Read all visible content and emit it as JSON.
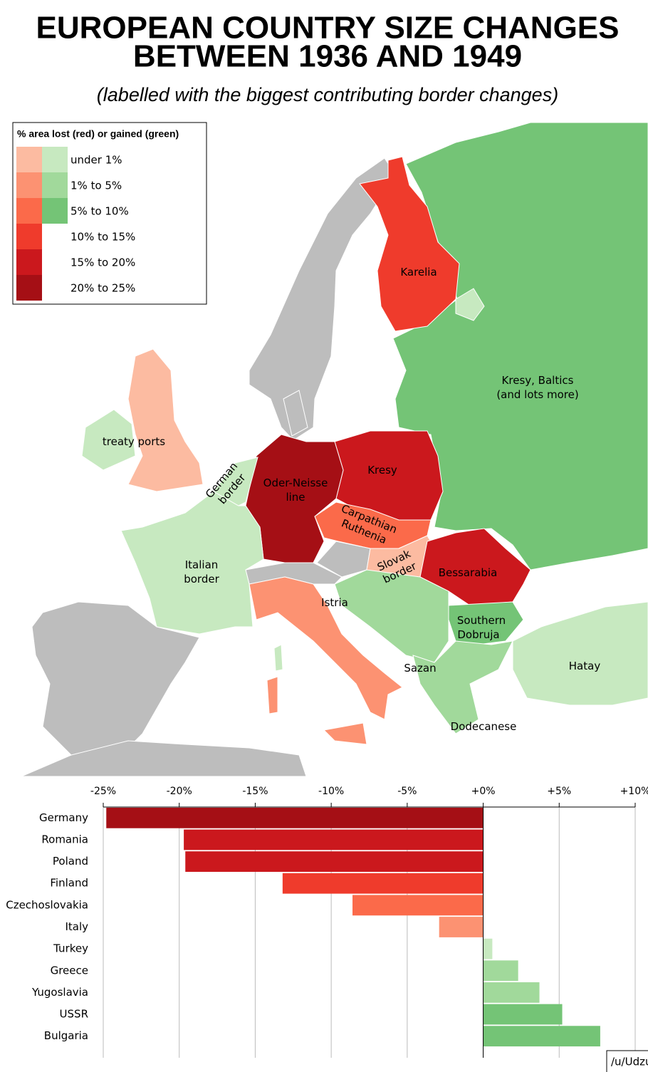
{
  "header": {
    "title_lines": [
      "EUROPEAN COUNTRY SIZE CHANGES",
      "BETWEEN 1936 AND 1949"
    ],
    "subtitle": "(labelled with the biggest contributing border changes)"
  },
  "map": {
    "legend": {
      "title": "% area lost (red) or gained (green)",
      "items": [
        {
          "label": "under 1%",
          "red": "#fcbba1",
          "green": "#c7e9c0"
        },
        {
          "label": "1% to 5%",
          "red": "#fc9272",
          "green": "#a1d99b"
        },
        {
          "label": "5% to 10%",
          "red": "#fb6a4a",
          "green": "#74c476"
        },
        {
          "label": "10% to 15%",
          "red": "#ef3b2c"
        },
        {
          "label": "15% to 20%",
          "red": "#cb181d"
        },
        {
          "label": "20% to 25%",
          "red": "#a50f15"
        }
      ]
    },
    "labels": [
      {
        "lines": [
          "Karelia"
        ]
      },
      {
        "lines": [
          "Kresy, Baltics",
          "(and lots more)"
        ]
      },
      {
        "lines": [
          "treaty ports"
        ]
      },
      {
        "lines": [
          "German",
          "border"
        ]
      },
      {
        "lines": [
          "Oder-Neisse",
          "line"
        ]
      },
      {
        "lines": [
          "Kresy"
        ]
      },
      {
        "lines": [
          "Carpathian",
          "Ruthenia"
        ]
      },
      {
        "lines": [
          "Italian",
          "border"
        ]
      },
      {
        "lines": [
          "Slovak",
          "border"
        ]
      },
      {
        "lines": [
          "Bessarabia"
        ]
      },
      {
        "lines": [
          "Istria"
        ]
      },
      {
        "lines": [
          "Southern",
          "Dobruja"
        ]
      },
      {
        "lines": [
          "Sazan"
        ]
      },
      {
        "lines": [
          "Hatay"
        ]
      },
      {
        "lines": [
          "Dodecanese"
        ]
      }
    ]
  },
  "credit": "/u/Udzu",
  "chart_data": {
    "type": "bar",
    "orientation": "horizontal",
    "categories": [
      "Germany",
      "Romania",
      "Poland",
      "Finland",
      "Czechoslovakia",
      "Italy",
      "Turkey",
      "Greece",
      "Yugoslavia",
      "USSR",
      "Bulgaria"
    ],
    "values": [
      -24.8,
      -19.7,
      -19.6,
      -13.2,
      -8.6,
      -2.9,
      0.6,
      2.3,
      3.7,
      5.2,
      7.7
    ],
    "colors": [
      "#a50f15",
      "#cb181d",
      "#cb181d",
      "#ef3b2c",
      "#fb6a4a",
      "#fc9272",
      "#c7e9c0",
      "#a1d99b",
      "#a1d99b",
      "#74c476",
      "#74c476"
    ],
    "xlim": [
      -25,
      10
    ],
    "xticks": [
      {
        "value": -25,
        "label": "-25%"
      },
      {
        "value": -20,
        "label": "-20%"
      },
      {
        "value": -15,
        "label": "-15%"
      },
      {
        "value": -10,
        "label": "-10%"
      },
      {
        "value": -5,
        "label": "-5%"
      },
      {
        "value": 0,
        "label": "+0%"
      },
      {
        "value": 5,
        "label": "+5%"
      },
      {
        "value": 10,
        "label": "+10%"
      }
    ],
    "grid": true
  }
}
